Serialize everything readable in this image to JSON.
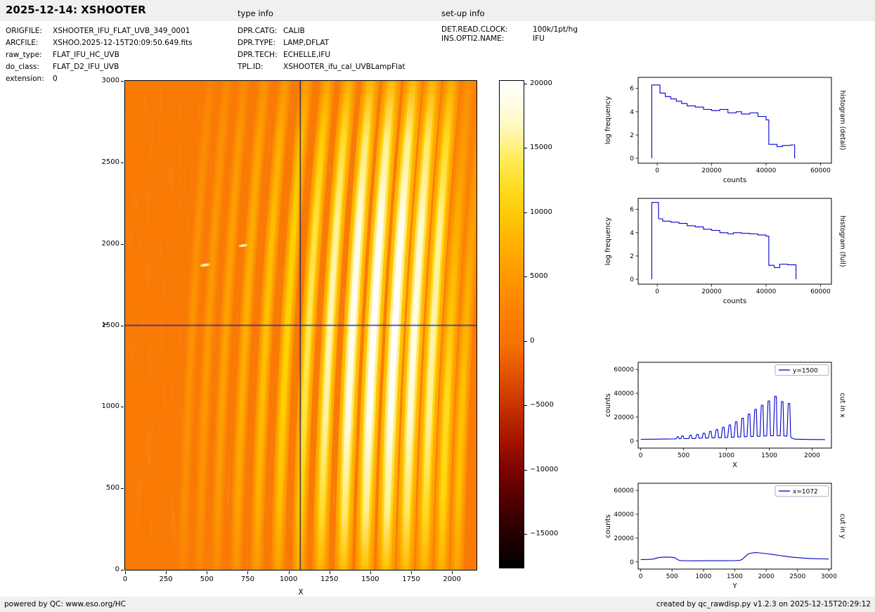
{
  "header": {
    "title": "2025-12-14: XSHOOTER",
    "type_info_label": "type info",
    "setup_info_label": "set-up info"
  },
  "metadata": {
    "left": [
      {
        "label": "ORIGFILE:",
        "value": "XSHOOTER_IFU_FLAT_UVB_349_0001"
      },
      {
        "label": "ARCFILE:",
        "value": "XSHOO.2025-12-15T20:09:50.649.fits"
      },
      {
        "label": "raw_type:",
        "value": "FLAT_IFU_HC_UVB"
      },
      {
        "label": "do_class:",
        "value": "FLAT_D2_IFU_UVB"
      },
      {
        "label": "extension:",
        "value": "0"
      }
    ],
    "middle": [
      {
        "label": "DPR.CATG:",
        "value": "CALIB"
      },
      {
        "label": "DPR.TYPE:",
        "value": "LAMP,DFLAT"
      },
      {
        "label": "DPR.TECH:",
        "value": "ECHELLE,IFU"
      },
      {
        "label": "TPL.ID:",
        "value": "XSHOOTER_ifu_cal_UVBLampFlat"
      }
    ],
    "right": [
      {
        "label": "DET.READ.CLOCK:",
        "value": "100k/1pt/hg"
      },
      {
        "label": "INS.OPTI2.NAME:",
        "value": "IFU"
      }
    ]
  },
  "footer": {
    "powered_prefix": "powered by QC: ",
    "powered_link": "www.eso.org/HC",
    "created": "created by qc_rawdisp.py v1.2.3 on 2025-12-15T20:29:12"
  },
  "colorbar": {
    "vmax": 20200,
    "vmin": -17600,
    "tick_values": [
      20000,
      15000,
      10000,
      5000,
      0,
      -5000,
      -10000,
      -15000
    ],
    "tick_labels": [
      "20000",
      "15000",
      "10000",
      "5000",
      "0",
      "−5000",
      "−10000",
      "−15000"
    ],
    "stops": [
      [
        0,
        "#ffffff"
      ],
      [
        0.05,
        "#fffce6"
      ],
      [
        0.1,
        "#fff8b4"
      ],
      [
        0.16,
        "#ffec5a"
      ],
      [
        0.22,
        "#ffdb1e"
      ],
      [
        0.28,
        "#ffc607"
      ],
      [
        0.35,
        "#ffab00"
      ],
      [
        0.42,
        "#ff9100"
      ],
      [
        0.5,
        "#fb7b04"
      ],
      [
        0.54,
        "#f77200"
      ],
      [
        0.6,
        "#e35500"
      ],
      [
        0.67,
        "#c63200"
      ],
      [
        0.74,
        "#a31300"
      ],
      [
        0.8,
        "#7c0300"
      ],
      [
        0.86,
        "#520000"
      ],
      [
        0.93,
        "#260000"
      ],
      [
        1,
        "#000000"
      ]
    ]
  },
  "chart_data": [
    {
      "id": "raw_image",
      "type": "heatmap",
      "xlabel": "X",
      "ylabel": "Y",
      "xlim": [
        0,
        2150
      ],
      "ylim": [
        0,
        3000
      ],
      "xticks": [
        0,
        250,
        500,
        750,
        1000,
        1250,
        1500,
        1750,
        2000
      ],
      "yticks": [
        0,
        500,
        1000,
        1500,
        2000,
        2500,
        3000
      ],
      "background": "#fa7a06",
      "crosshair": {
        "x": 1072,
        "y": 1500,
        "h_color": "#2222cc",
        "v_color": "#202060"
      },
      "stripes": [
        {
          "xb": 355,
          "xt": 520,
          "w": 26,
          "i": 0.16
        },
        {
          "xb": 455,
          "xt": 622,
          "w": 27,
          "i": 0.2
        },
        {
          "xb": 560,
          "xt": 730,
          "w": 28,
          "i": 0.26
        },
        {
          "xb": 680,
          "xt": 852,
          "w": 30,
          "i": 0.34
        },
        {
          "xb": 805,
          "xt": 978,
          "w": 32,
          "i": 0.44
        },
        {
          "xb": 935,
          "xt": 1108,
          "w": 34,
          "i": 0.55
        },
        {
          "xb": 1065,
          "xt": 1238,
          "w": 36,
          "i": 0.68
        },
        {
          "xb": 1195,
          "xt": 1368,
          "w": 40,
          "i": 0.82
        },
        {
          "xb": 1335,
          "xt": 1502,
          "w": 44,
          "i": 0.95
        },
        {
          "xb": 1465,
          "xt": 1632,
          "w": 46,
          "i": 1.0
        },
        {
          "xb": 1595,
          "xt": 1762,
          "w": 46,
          "i": 1.0
        },
        {
          "xb": 1715,
          "xt": 1882,
          "w": 44,
          "i": 0.92
        },
        {
          "xb": 1830,
          "xt": 1997,
          "w": 42,
          "i": 0.8
        },
        {
          "xb": 1935,
          "xt": 2102,
          "w": 38,
          "i": 0.6,
          "low": true
        },
        {
          "xb": 2030,
          "xt": 2195,
          "w": 34,
          "i": 0.45,
          "low": true
        }
      ],
      "artifacts": [
        {
          "x": 490,
          "y": 1870,
          "w": 62,
          "h": 18,
          "angle": -8
        },
        {
          "x": 722,
          "y": 1990,
          "w": 56,
          "h": 16,
          "angle": -8
        }
      ]
    },
    {
      "id": "histogram_detail",
      "type": "line",
      "step": true,
      "xlabel": "counts",
      "ylabel": "log frequency",
      "side_label": "histogram (detail)",
      "color": "#0000cc",
      "xlim": [
        -7000,
        64000
      ],
      "ylim": [
        -0.42,
        6.95
      ],
      "xticks": [
        0,
        20000,
        40000,
        60000
      ],
      "yticks": [
        0,
        2,
        4,
        6
      ],
      "x": [
        -2000,
        -2000,
        1000,
        1000,
        3000,
        3000,
        5000,
        5000,
        7000,
        7000,
        9000,
        9000,
        11000,
        11000,
        14000,
        14000,
        17000,
        17000,
        20000,
        20000,
        23000,
        23000,
        26000,
        26000,
        29000,
        29000,
        31000,
        31000,
        34000,
        34000,
        37000,
        37000,
        40000,
        40000,
        41000,
        41000,
        44000,
        44000,
        46000,
        46000,
        49000,
        49000,
        50500,
        50500
      ],
      "y": [
        0,
        6.3,
        6.3,
        5.6,
        5.6,
        5.3,
        5.3,
        5.1,
        5.1,
        4.9,
        4.9,
        4.7,
        4.7,
        4.5,
        4.5,
        4.4,
        4.4,
        4.2,
        4.2,
        4.1,
        4.1,
        4.2,
        4.2,
        3.9,
        3.9,
        4.0,
        4.0,
        3.8,
        3.8,
        3.9,
        3.9,
        3.6,
        3.6,
        3.3,
        3.3,
        1.2,
        1.2,
        1.0,
        1.0,
        1.1,
        1.1,
        1.15,
        1.15,
        0
      ]
    },
    {
      "id": "histogram_full",
      "type": "line",
      "step": true,
      "xlabel": "counts",
      "ylabel": "log frequency",
      "side_label": "histogram (full)",
      "color": "#0000cc",
      "xlim": [
        -7000,
        64000
      ],
      "ylim": [
        -0.42,
        6.95
      ],
      "xticks": [
        0,
        20000,
        40000,
        60000
      ],
      "yticks": [
        0,
        2,
        4,
        6
      ],
      "x": [
        -2000,
        -2000,
        500,
        500,
        2000,
        2000,
        5000,
        5000,
        8000,
        8000,
        11000,
        11000,
        14000,
        14000,
        17000,
        17000,
        20000,
        20000,
        23000,
        23000,
        26000,
        26000,
        28000,
        28000,
        31000,
        31000,
        34000,
        34000,
        37000,
        37000,
        40000,
        40000,
        41000,
        41000,
        43000,
        43000,
        45000,
        45000,
        48000,
        48000,
        51000,
        51000
      ],
      "y": [
        0,
        6.6,
        6.6,
        5.2,
        5.2,
        5.0,
        5.0,
        4.9,
        4.9,
        4.8,
        4.8,
        4.6,
        4.6,
        4.5,
        4.5,
        4.3,
        4.3,
        4.2,
        4.2,
        4.0,
        4.0,
        3.9,
        3.9,
        4.0,
        4.0,
        3.95,
        3.95,
        3.9,
        3.9,
        3.8,
        3.8,
        3.7,
        3.7,
        1.2,
        1.2,
        1.0,
        1.0,
        1.3,
        1.3,
        1.25,
        1.25,
        0
      ]
    },
    {
      "id": "cut_in_x",
      "type": "line",
      "xlabel": "X",
      "ylabel": "counts",
      "side_label": "cut in x",
      "legend": "y=1500",
      "color": "#0000cc",
      "xlim": [
        -30,
        2225
      ],
      "ylim": [
        -6000,
        66000
      ],
      "xticks": [
        0,
        500,
        1000,
        1500,
        2000
      ],
      "yticks": [
        0,
        20000,
        40000,
        60000
      ],
      "x": [
        0,
        150,
        300,
        380,
        415,
        425,
        440,
        450,
        470,
        480,
        495,
        505,
        560,
        575,
        590,
        600,
        640,
        655,
        670,
        680,
        715,
        730,
        748,
        758,
        790,
        805,
        822,
        832,
        865,
        880,
        898,
        908,
        940,
        955,
        972,
        982,
        1015,
        1030,
        1048,
        1058,
        1090,
        1105,
        1123,
        1133,
        1165,
        1180,
        1198,
        1208,
        1240,
        1255,
        1273,
        1283,
        1315,
        1330,
        1349,
        1359,
        1392,
        1407,
        1426,
        1436,
        1470,
        1485,
        1504,
        1514,
        1548,
        1563,
        1582,
        1592,
        1627,
        1642,
        1660,
        1670,
        1706,
        1721,
        1739,
        1749,
        1760,
        1800,
        1900,
        2000,
        2100,
        2150
      ],
      "y": [
        1400,
        1500,
        1600,
        1700,
        1800,
        3500,
        3500,
        1800,
        2000,
        4200,
        4200,
        2000,
        1900,
        4800,
        4800,
        2000,
        2100,
        5500,
        5500,
        2200,
        2300,
        6500,
        6500,
        2300,
        2500,
        8000,
        8000,
        2500,
        2600,
        9500,
        9500,
        2700,
        2800,
        11500,
        11500,
        2900,
        3000,
        13500,
        13500,
        3100,
        3200,
        16000,
        16000,
        3300,
        3400,
        19000,
        19000,
        3500,
        3600,
        22500,
        22500,
        3700,
        3800,
        26500,
        26500,
        3900,
        4000,
        30000,
        30000,
        4100,
        4200,
        33500,
        33500,
        4300,
        4400,
        37500,
        37500,
        4400,
        4300,
        33000,
        33000,
        4200,
        4000,
        31500,
        31500,
        3800,
        2500,
        1500,
        1300,
        1200,
        1200,
        1150
      ]
    },
    {
      "id": "cut_in_y",
      "type": "line",
      "xlabel": "Y",
      "ylabel": "counts",
      "side_label": "cut in y",
      "legend": "x=1072",
      "color": "#0000cc",
      "xlim": [
        -40,
        3040
      ],
      "ylim": [
        -6000,
        66000
      ],
      "xticks": [
        0,
        500,
        1000,
        1500,
        2000,
        2500,
        3000
      ],
      "yticks": [
        0,
        20000,
        40000,
        60000
      ],
      "x": [
        0,
        100,
        200,
        280,
        350,
        430,
        500,
        550,
        580,
        620,
        700,
        900,
        1100,
        1300,
        1500,
        1580,
        1620,
        1660,
        1700,
        1750,
        1820,
        1900,
        2000,
        2100,
        2200,
        2300,
        2400,
        2500,
        2600,
        2700,
        2800,
        2900,
        3000
      ],
      "y": [
        1900,
        2100,
        2400,
        3600,
        4000,
        4100,
        3900,
        3400,
        2200,
        1200,
        1000,
        950,
        1000,
        1050,
        1100,
        1300,
        2200,
        4200,
        6200,
        7300,
        7800,
        7600,
        7000,
        6300,
        5500,
        4800,
        4100,
        3600,
        3200,
        2900,
        2700,
        2550,
        2450
      ]
    }
  ]
}
